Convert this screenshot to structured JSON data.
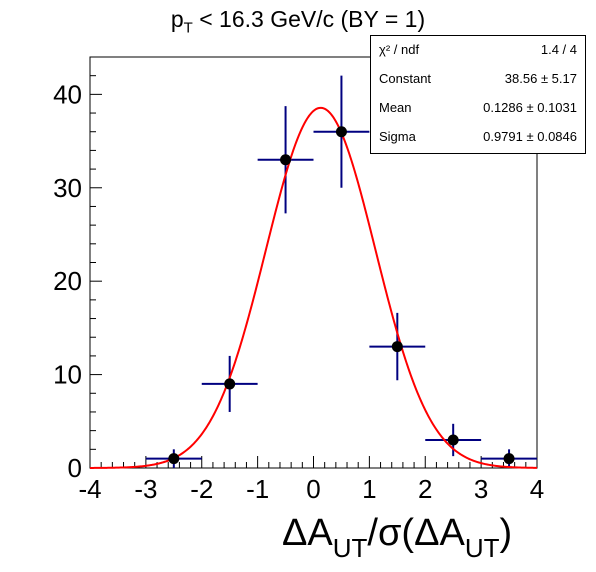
{
  "chart_data": {
    "type": "scatter",
    "title": {
      "p": "p",
      "p_sub": "T",
      "rest": " < 16.3 GeV/c (BY = 1)"
    },
    "xlabel": {
      "part1": "ΔA",
      "sub1": "UT",
      "part2": "/σ(ΔA",
      "sub2": "UT",
      "part3": ")"
    },
    "xlim": [
      -4,
      4
    ],
    "ylim": [
      0,
      44
    ],
    "xticks": [
      -4,
      -3,
      -2,
      -1,
      0,
      1,
      2,
      3,
      4
    ],
    "yticks": [
      0,
      10,
      20,
      30,
      40
    ],
    "grid": false,
    "points": [
      {
        "x": -2.5,
        "y": 1,
        "xerr": 0.5,
        "yerr": 1.0
      },
      {
        "x": -1.5,
        "y": 9,
        "xerr": 0.5,
        "yerr": 3.0
      },
      {
        "x": -0.5,
        "y": 33,
        "xerr": 0.5,
        "yerr": 5.74
      },
      {
        "x": 0.5,
        "y": 36,
        "xerr": 0.5,
        "yerr": 6.0
      },
      {
        "x": 1.5,
        "y": 13,
        "xerr": 0.5,
        "yerr": 3.61
      },
      {
        "x": 2.5,
        "y": 3,
        "xerr": 0.5,
        "yerr": 1.73
      },
      {
        "x": 3.5,
        "y": 1,
        "xerr": 0.5,
        "yerr": 1.0
      }
    ],
    "fit": {
      "function": "gaus",
      "constant": 38.56,
      "mean": 0.1286,
      "sigma": 0.9791
    },
    "colors": {
      "markers": "#000000",
      "errorbars": "#000080",
      "fit": "#ff0000"
    }
  },
  "stats_box": {
    "rows": [
      {
        "label": "χ² / ndf",
        "value": "1.4 / 4"
      },
      {
        "label": "Constant",
        "value": "38.56 ± 5.17"
      },
      {
        "label": "Mean",
        "value": "0.1286 ± 0.1031"
      },
      {
        "label": "Sigma",
        "value": "0.9791 ± 0.0846"
      }
    ]
  }
}
